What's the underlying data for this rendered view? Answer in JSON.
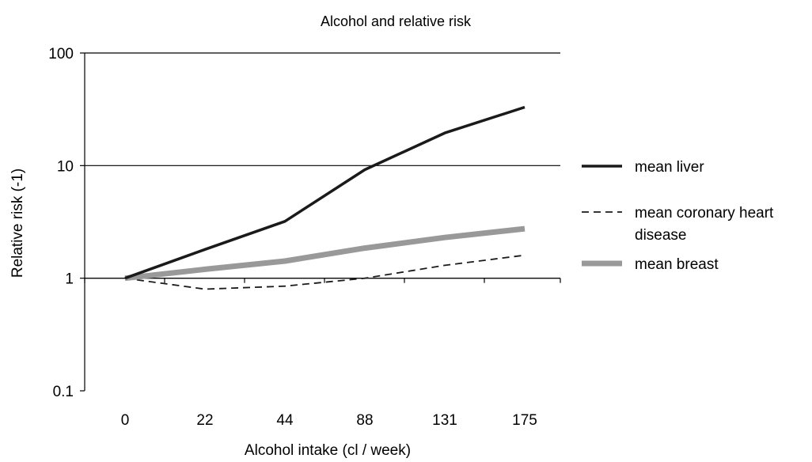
{
  "chart_data": {
    "type": "line",
    "title": "Alcohol and relative risk",
    "xlabel": "Alcohol intake (cl / week)",
    "ylabel": "Relative risk (-1)",
    "y_scale": "log",
    "ylim": [
      0.1,
      100
    ],
    "y_ticks": [
      {
        "value": 100,
        "label": "100"
      },
      {
        "value": 10,
        "label": "10"
      },
      {
        "value": 1,
        "label": "1"
      },
      {
        "value": 0.1,
        "label": "0.1"
      }
    ],
    "categories": [
      "0",
      "22",
      "44",
      "88",
      "131",
      "175"
    ],
    "grid": "horizontal major lines",
    "legend_position": "right",
    "series": [
      {
        "name": "mean liver",
        "style": "solid",
        "color": "#1a1a1a",
        "values": [
          1.0,
          1.8,
          3.2,
          9.2,
          19.5,
          33.0
        ]
      },
      {
        "name": "mean coronary heart disease",
        "legend_lines": [
          "mean coronary heart",
          "disease"
        ],
        "style": "dashed",
        "color": "#1a1a1a",
        "values": [
          1.0,
          0.8,
          0.85,
          1.0,
          1.3,
          1.6
        ]
      },
      {
        "name": "mean breast",
        "style": "thick",
        "color": "#999999",
        "values": [
          1.0,
          1.2,
          1.42,
          1.85,
          2.3,
          2.75
        ]
      }
    ]
  }
}
